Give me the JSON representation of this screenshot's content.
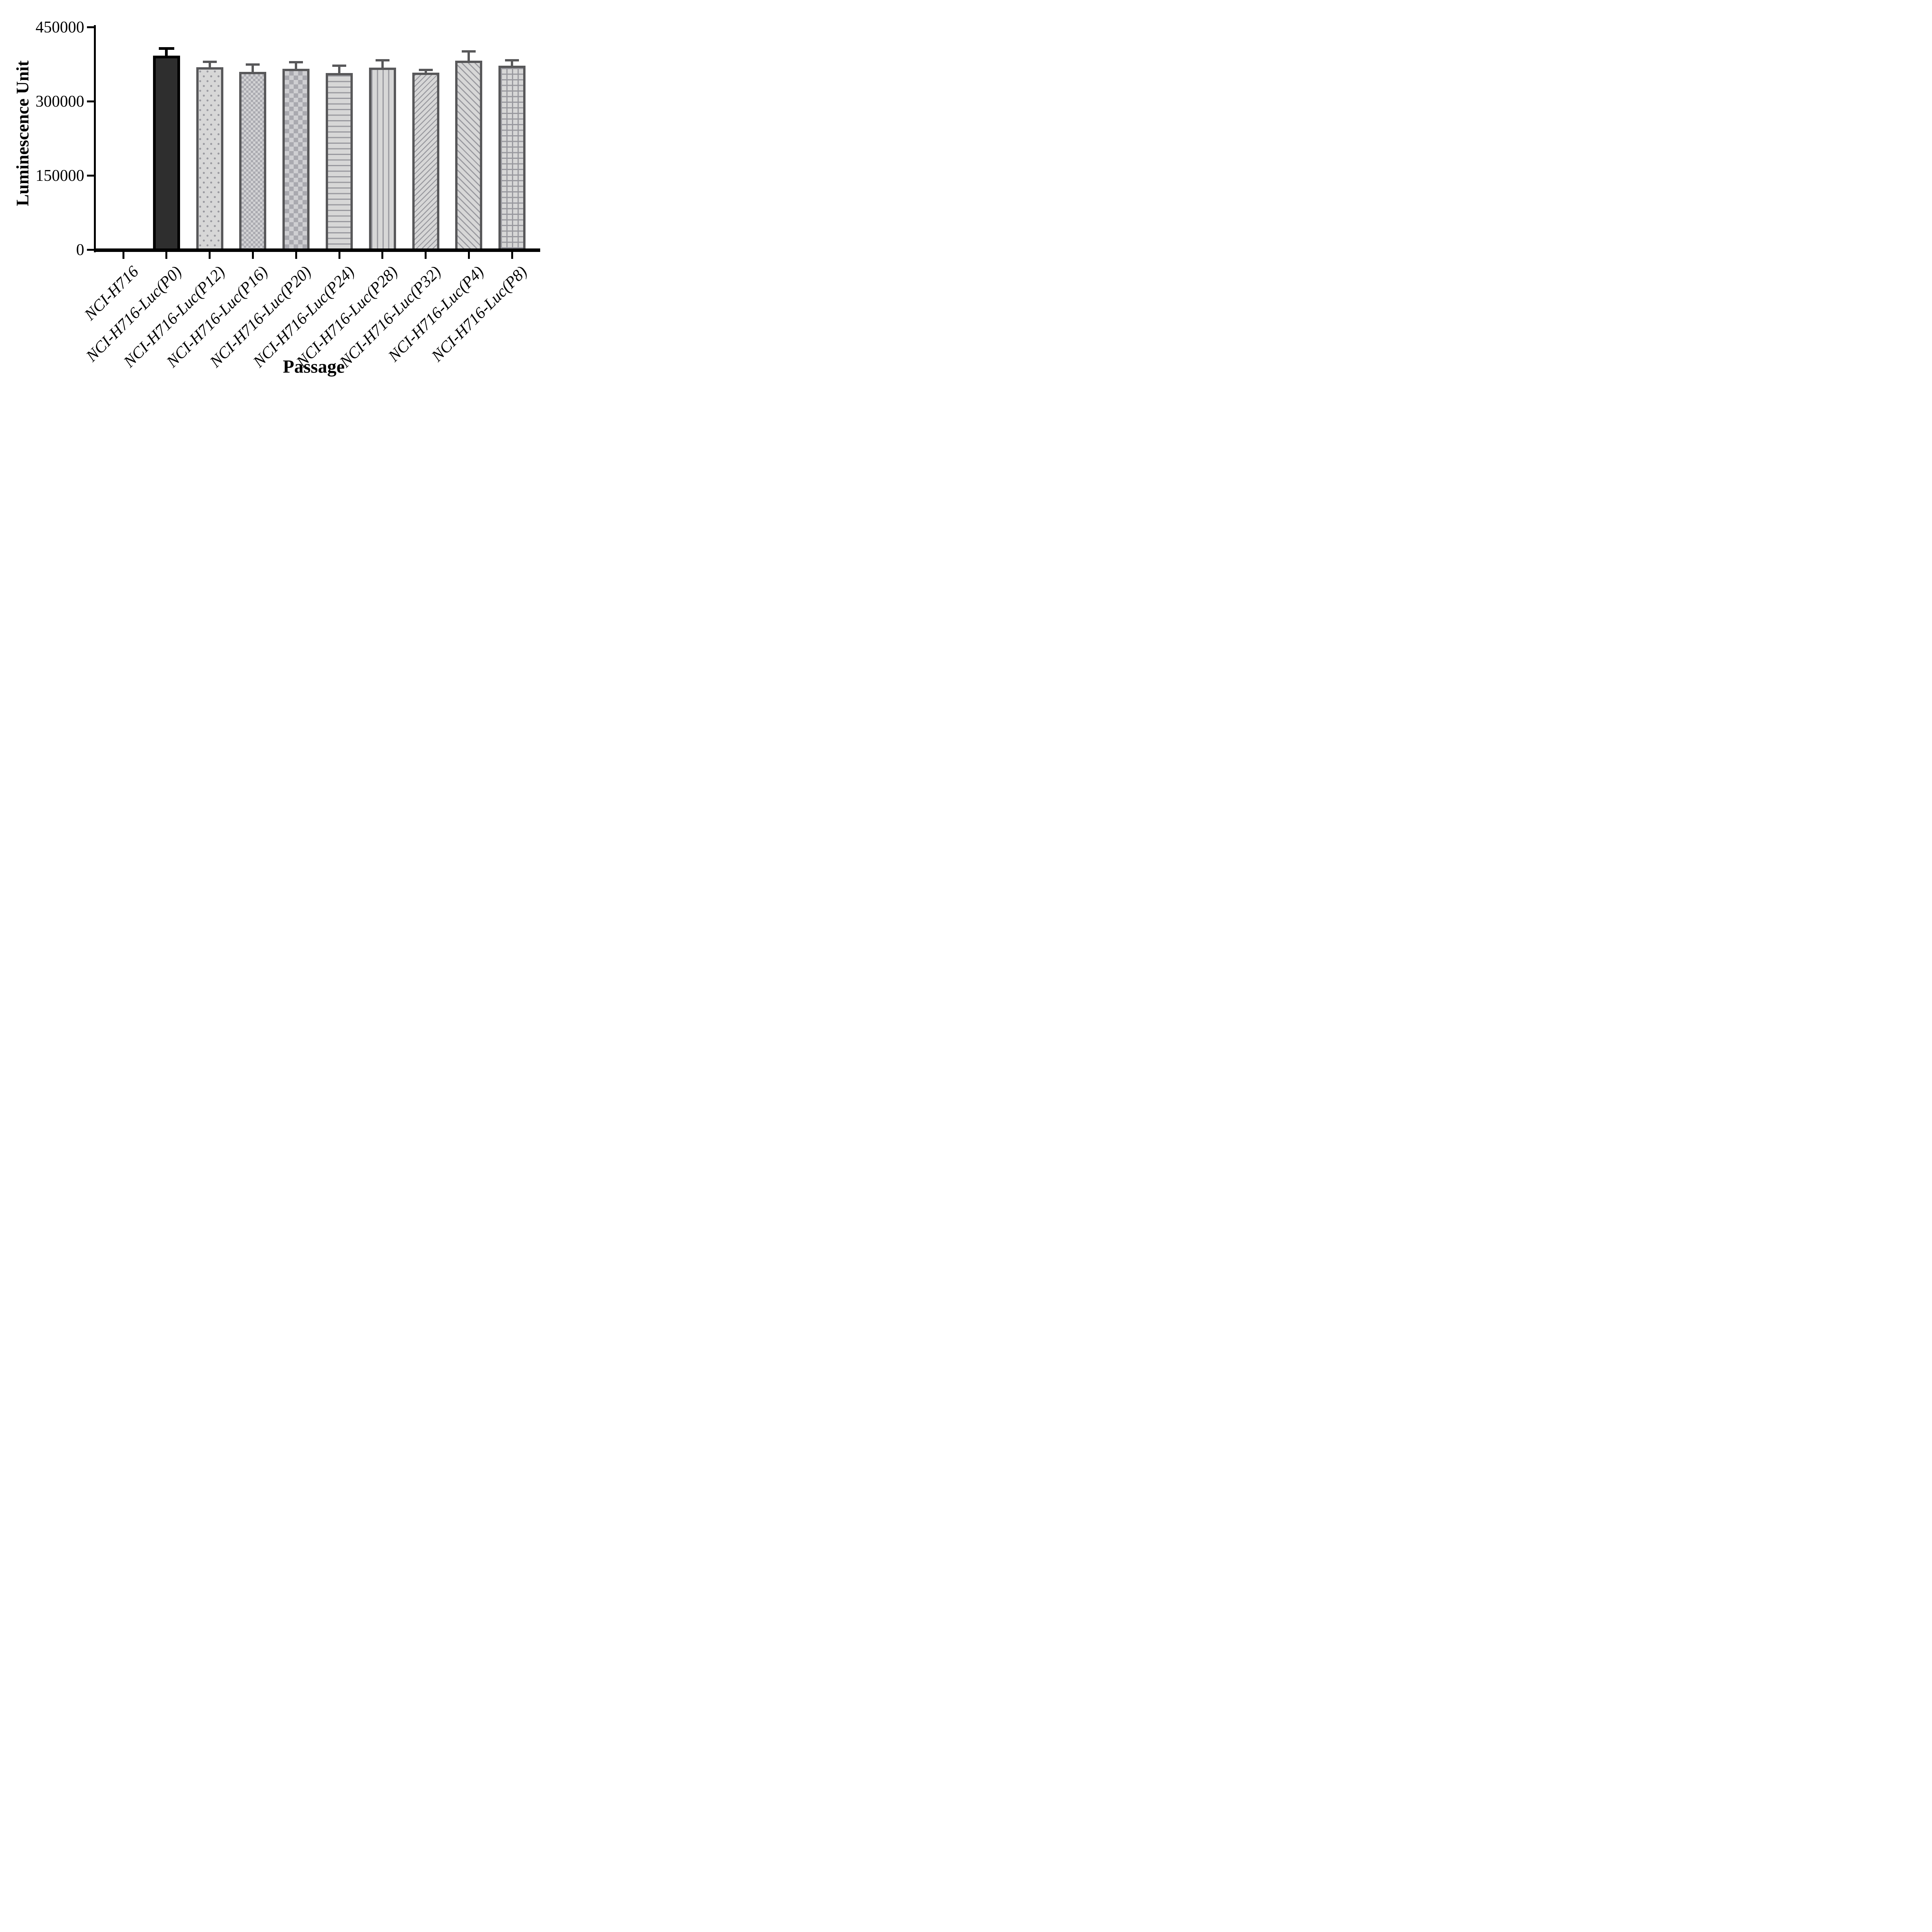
{
  "chart_data": {
    "type": "bar",
    "title": "",
    "xlabel": "Passage",
    "ylabel": "Luminescence Unit",
    "ylim": [
      0,
      450000
    ],
    "yticks": [
      0,
      150000,
      300000,
      450000
    ],
    "grid": false,
    "legend": false,
    "error_bars": "upper",
    "categories": [
      "NCI-H716",
      "NCI-H716-Luc(P0)",
      "NCI-H716-Luc(P12)",
      "NCI-H716-Luc(P16)",
      "NCI-H716-Luc(P20)",
      "NCI-H716-Luc(P24)",
      "NCI-H716-Luc(P28)",
      "NCI-H716-Luc(P32)",
      "NCI-H716-Luc(P4)",
      "NCI-H716-Luc(P8)"
    ],
    "bars": [
      {
        "category": "NCI-H716",
        "value": 0,
        "error": 0,
        "pattern": "none",
        "edge": "#58585a"
      },
      {
        "category": "NCI-H716-Luc(P0)",
        "value": 392000,
        "error": 15000,
        "pattern": "solid-dark",
        "edge": "#000000"
      },
      {
        "category": "NCI-H716-Luc(P12)",
        "value": 369000,
        "error": 11000,
        "pattern": "dots",
        "edge": "#58585a"
      },
      {
        "category": "NCI-H716-Luc(P16)",
        "value": 359000,
        "error": 15000,
        "pattern": "checker-fine",
        "edge": "#58585a"
      },
      {
        "category": "NCI-H716-Luc(P20)",
        "value": 366000,
        "error": 13000,
        "pattern": "checker-coarse",
        "edge": "#58585a"
      },
      {
        "category": "NCI-H716-Luc(P24)",
        "value": 357000,
        "error": 15000,
        "pattern": "lines-horizontal",
        "edge": "#58585a"
      },
      {
        "category": "NCI-H716-Luc(P28)",
        "value": 368000,
        "error": 15000,
        "pattern": "lines-vertical",
        "edge": "#58585a"
      },
      {
        "category": "NCI-H716-Luc(P32)",
        "value": 358000,
        "error": 5000,
        "pattern": "diagonal-up",
        "edge": "#58585a"
      },
      {
        "category": "NCI-H716-Luc(P4)",
        "value": 382000,
        "error": 19000,
        "pattern": "diagonal-down",
        "edge": "#58585a"
      },
      {
        "category": "NCI-H716-Luc(P8)",
        "value": 372000,
        "error": 11000,
        "pattern": "grid",
        "edge": "#58585a"
      }
    ],
    "colors": {
      "axis": "#000000",
      "text": "#000000",
      "dark_bar_fill": "#2e2e2e",
      "pattern_fill": "#d7d7d7",
      "pattern_ink": "#98989e",
      "bar_outline": "#58585a"
    }
  }
}
